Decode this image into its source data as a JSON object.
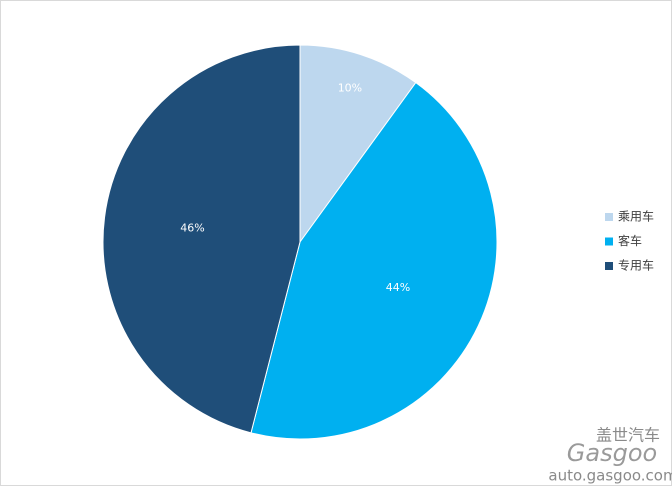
{
  "chart_data": {
    "type": "pie",
    "categories": [
      "乘用车",
      "客车",
      "专用车"
    ],
    "values": [
      10,
      44,
      46
    ],
    "value_labels": [
      "10%",
      "44%",
      "46%"
    ],
    "colors": [
      "#bdd7ee",
      "#00b0f0",
      "#1f4e79"
    ],
    "legend": "right"
  },
  "watermark": {
    "brand": "盖世汽车",
    "logo": "Gasgoo",
    "url": "auto.gasgoo.com"
  }
}
